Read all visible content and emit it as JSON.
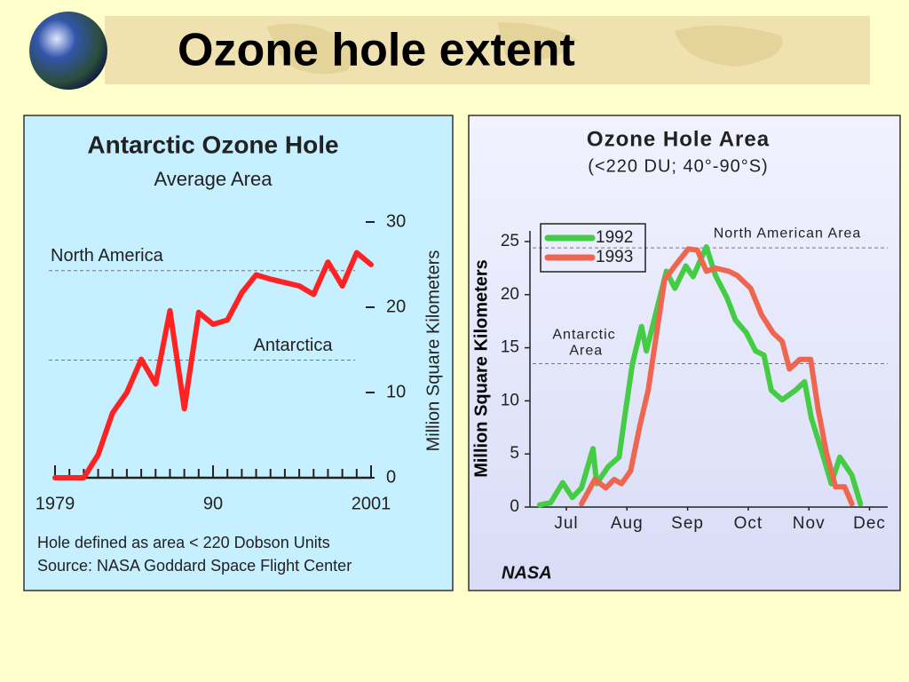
{
  "slide_title": "Ozone hole extent",
  "chart_data": [
    {
      "type": "line",
      "title": "Antarctic Ozone Hole",
      "subtitle": "Average Area",
      "y_label": "Million Square Kilometers",
      "x": [
        1979,
        1980,
        1981,
        1982,
        1983,
        1984,
        1985,
        1986,
        1987,
        1988,
        1989,
        1990,
        1991,
        1992,
        1993,
        1994,
        1995,
        1996,
        1997,
        1998,
        1999,
        2000,
        2001
      ],
      "values": [
        0,
        0,
        0,
        2.7,
        7.6,
        10,
        13.9,
        11,
        19.6,
        8.1,
        19.4,
        18,
        18.5,
        21.7,
        23.8,
        23.3,
        22.9,
        22.5,
        21.5,
        25.3,
        22.5,
        26.4,
        25
      ],
      "color": "#ff2222",
      "xlim": [
        1979,
        2001
      ],
      "xticks": [
        1979,
        {
          "value": 1990,
          "label": "90"
        },
        2001
      ],
      "ylim": [
        0,
        30
      ],
      "yticks": [
        0,
        10,
        20,
        30
      ],
      "reference_lines": [
        {
          "label": "North America",
          "value": 24.3
        },
        {
          "label": "Antarctica",
          "value": 13.8
        }
      ],
      "notes": [
        "Hole defined as area < 220 Dobson Units",
        "Source:  NASA Goddard Space Flight Center"
      ]
    },
    {
      "type": "line",
      "title": "Ozone Hole Area",
      "subtitle": "(<220 DU; 40°-90°S)",
      "y_label": "Million Square Kilometers",
      "credit": "NASA",
      "xlim": [
        6.4,
        12.3
      ],
      "xticks": [
        {
          "value": 7,
          "label": "Jul"
        },
        {
          "value": 8,
          "label": "Aug"
        },
        {
          "value": 9,
          "label": "Sep"
        },
        {
          "value": 10,
          "label": "Oct"
        },
        {
          "value": 11,
          "label": "Nov"
        },
        {
          "value": 12,
          "label": "Dec"
        }
      ],
      "ylim": [
        0,
        25
      ],
      "yticks": [
        0,
        5,
        10,
        15,
        20,
        25
      ],
      "legend": "upper left",
      "series": [
        {
          "name": "1992",
          "color": "#44cc44",
          "x": [
            6.56,
            6.74,
            6.94,
            7.1,
            7.25,
            7.44,
            7.5,
            7.69,
            7.87,
            7.96,
            8.09,
            8.24,
            8.32,
            8.47,
            8.65,
            8.79,
            8.97,
            9.09,
            9.31,
            9.46,
            9.65,
            9.79,
            9.97,
            10.12,
            10.26,
            10.38,
            10.56,
            10.78,
            10.93,
            11.04,
            11.22,
            11.37,
            11.51,
            11.71,
            11.85
          ],
          "values": [
            0.2,
            0.4,
            2.3,
            0.9,
            1.8,
            5.5,
            2.2,
            3.8,
            4.7,
            8.4,
            13.5,
            17,
            14.7,
            18.1,
            22.2,
            20.6,
            22.7,
            21.7,
            24.5,
            21.8,
            19.7,
            17.6,
            16.4,
            14.7,
            14.3,
            11,
            10.1,
            11,
            11.8,
            8.4,
            5.1,
            2.2,
            4.7,
            3,
            0.3
          ]
        },
        {
          "name": "1993",
          "color": "#ee6650",
          "x": [
            7.25,
            7.47,
            7.65,
            7.79,
            7.91,
            8.06,
            8.21,
            8.35,
            8.5,
            8.62,
            8.79,
            9.01,
            9.16,
            9.31,
            9.46,
            9.68,
            9.82,
            10.04,
            10.22,
            10.41,
            10.56,
            10.68,
            10.85,
            11.03,
            11.15,
            11.29,
            11.44,
            11.59,
            11.71
          ],
          "values": [
            0.3,
            2.6,
            1.8,
            2.6,
            2.2,
            3.4,
            7.6,
            11,
            16.8,
            21.4,
            22.7,
            24.3,
            24.2,
            22.2,
            22.5,
            22.2,
            21.8,
            20.6,
            18.1,
            16.4,
            15.6,
            13,
            13.9,
            13.9,
            9.3,
            5.1,
            1.9,
            1.9,
            0.3
          ]
        }
      ],
      "reference_lines": [
        {
          "label": "North American Area",
          "value": 24.4
        },
        {
          "label": "Antarctic Area",
          "value": 13.5
        }
      ]
    }
  ]
}
